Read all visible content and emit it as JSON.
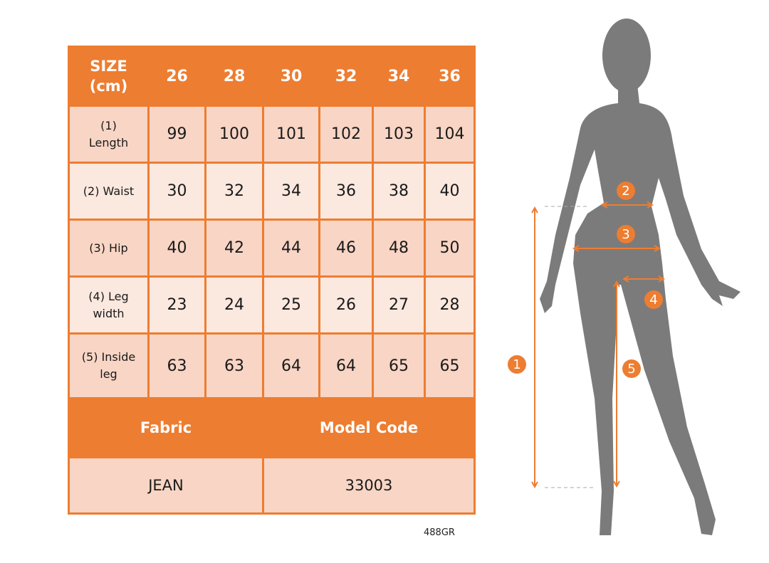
{
  "size_table": {
    "header_label": [
      "SIZE",
      "(cm)"
    ],
    "sizes": [
      "26",
      "28",
      "30",
      "32",
      "34",
      "36"
    ],
    "rows": [
      {
        "label": [
          "(1)",
          "Length"
        ],
        "values": [
          "99",
          "100",
          "101",
          "102",
          "103",
          "104"
        ]
      },
      {
        "label": [
          "(2) Waist"
        ],
        "values": [
          "30",
          "32",
          "34",
          "36",
          "38",
          "40"
        ]
      },
      {
        "label": [
          "(3) Hip"
        ],
        "values": [
          "40",
          "42",
          "44",
          "46",
          "48",
          "50"
        ]
      },
      {
        "label": [
          "(4) Leg",
          "width"
        ],
        "values": [
          "23",
          "24",
          "25",
          "26",
          "27",
          "28"
        ]
      },
      {
        "label": [
          "(5) Inside",
          "leg"
        ],
        "values": [
          "63",
          "63",
          "64",
          "64",
          "65",
          "65"
        ]
      }
    ]
  },
  "product": {
    "fabric_label": "Fabric",
    "model_code_label": "Model Code",
    "fabric_value": "JEAN",
    "model_code_value": "33003"
  },
  "figure": {
    "markers": [
      "1",
      "2",
      "3",
      "4",
      "5"
    ],
    "accent_color": "#ed7d31",
    "silhouette_color": "#7b7b7b"
  },
  "footer_code": "488GR"
}
